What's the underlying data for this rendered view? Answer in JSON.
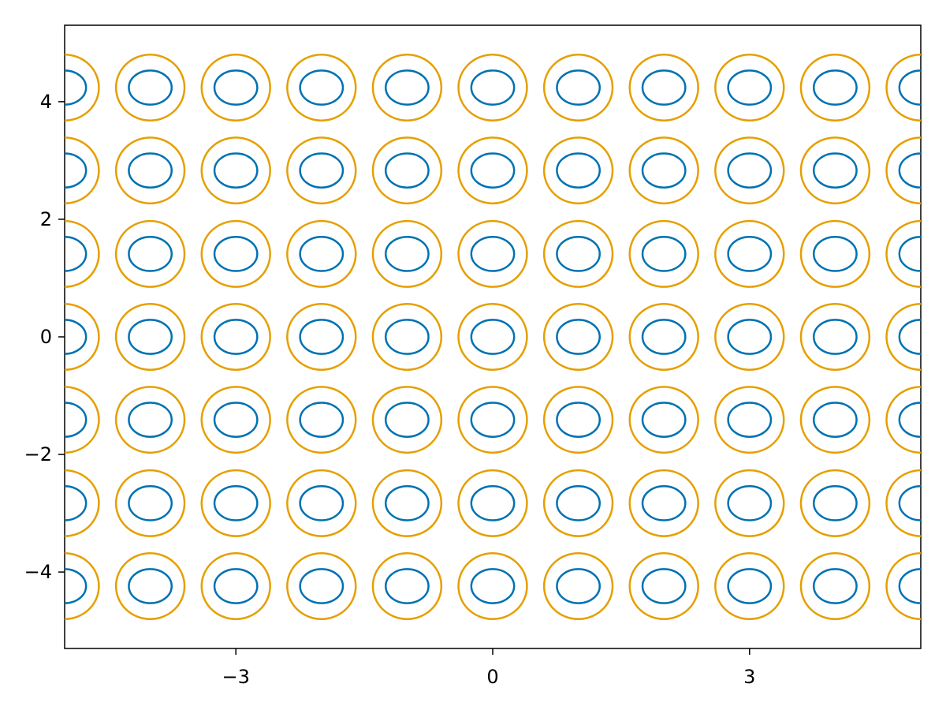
{
  "chart_data": {
    "type": "contour",
    "title": "",
    "xlabel": "",
    "ylabel": "",
    "xlim": [
      -5,
      5
    ],
    "ylim": [
      -5.3,
      5.3
    ],
    "data_xlim": [
      -5,
      5
    ],
    "grid": false,
    "legend": "none",
    "x_ticks": [
      -3,
      0,
      3
    ],
    "x_tick_labels": [
      "−3",
      "0",
      "3"
    ],
    "y_ticks": [
      -4,
      -2,
      0,
      2,
      4
    ],
    "y_tick_labels": [
      "−4",
      "−2",
      "0",
      "2",
      "4"
    ],
    "center_x": [
      -5,
      -4,
      -3,
      -2,
      -1,
      0,
      1,
      2,
      3,
      4,
      5
    ],
    "center_y": [
      4.24,
      2.83,
      1.41,
      0,
      -1.41,
      -2.83,
      -4.24
    ],
    "levels": [
      {
        "name": "inner",
        "rx": 0.25,
        "ry": 0.29,
        "color": "#0072b2"
      },
      {
        "name": "outer",
        "rx": 0.4,
        "ry": 0.56,
        "color": "#e69f00"
      }
    ]
  }
}
